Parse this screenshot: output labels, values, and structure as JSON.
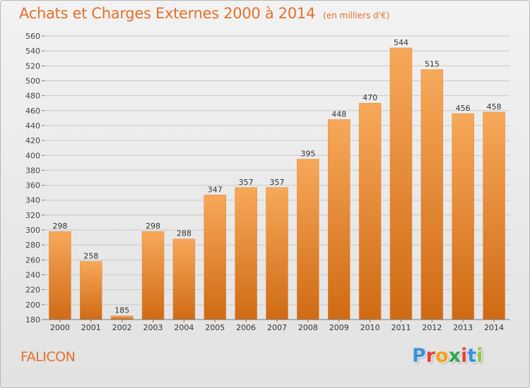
{
  "header": {
    "title": "Achats et Charges Externes 2000 à 2014",
    "subtitle": "(en milliers d'€)"
  },
  "footer": {
    "commune": "FALICON",
    "logo": {
      "letters": [
        "P",
        "r",
        "o",
        "x",
        "i",
        "t",
        "i"
      ],
      "colors": [
        "#3a8fd8",
        "#e7413c",
        "#f3a21a",
        "#2fa84f",
        "#e7413c",
        "#3a8fd8",
        "#8cc63f"
      ]
    }
  },
  "colors": {
    "accent": "#e4702a",
    "bar_top": "#f7a85a",
    "bar_bottom": "#d06a14",
    "grid": "#c8c8c8"
  },
  "chart_data": {
    "type": "bar",
    "title": "Achats et Charges Externes 2000 à 2014",
    "categories": [
      "2000",
      "2001",
      "2002",
      "2003",
      "2004",
      "2005",
      "2006",
      "2007",
      "2008",
      "2009",
      "2010",
      "2011",
      "2012",
      "2013",
      "2014"
    ],
    "values": [
      298,
      258,
      185,
      298,
      288,
      347,
      357,
      357,
      395,
      448,
      470,
      544,
      515,
      456,
      458
    ],
    "data_labels": [
      "298",
      "258",
      "185",
      "298",
      "288",
      "347",
      "357",
      "357",
      "395",
      "448",
      "470",
      "544",
      "515",
      "456",
      "458"
    ],
    "ylim": [
      180,
      560
    ],
    "yticks": [
      180,
      200,
      220,
      240,
      260,
      280,
      300,
      320,
      340,
      360,
      380,
      400,
      420,
      440,
      460,
      480,
      500,
      520,
      540,
      560
    ],
    "grid": true,
    "xlabel": "",
    "ylabel": ""
  }
}
